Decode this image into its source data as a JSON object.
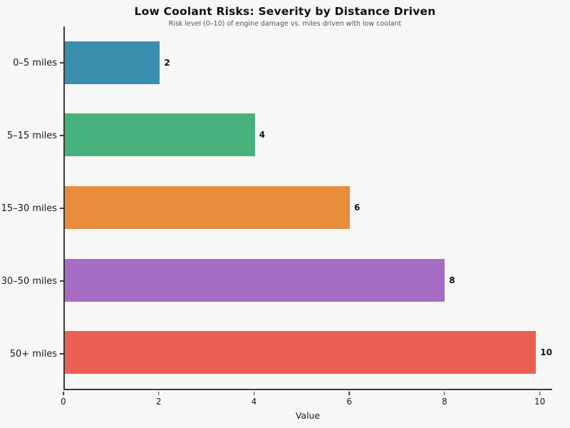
{
  "figure": {
    "title": "Low Coolant Risks: Severity by Distance Driven",
    "subtitle": "Risk level (0–10) of engine damage vs. miles driven with low coolant"
  },
  "chart_data": {
    "type": "bar",
    "orientation": "horizontal",
    "title": "Low Coolant Risks: Severity by Distance Driven",
    "subtitle": "Risk level (0–10) of engine damage vs. miles driven with low coolant",
    "categories": [
      "0–5 miles",
      "5–15 miles",
      "15–30 miles",
      "30–50 miles",
      "50+ miles"
    ],
    "values": [
      2,
      4,
      6,
      8,
      10
    ],
    "value_labels": [
      "2",
      "4",
      "6",
      "8",
      "10"
    ],
    "bar_colors": [
      "#3a8fae",
      "#48b27c",
      "#e88d3c",
      "#a76cc4",
      "#ea6153"
    ],
    "xlabel": "Value",
    "ylabel": "",
    "x_ticks": [
      0,
      2,
      4,
      6,
      8,
      10
    ],
    "xlim": [
      0,
      10.26
    ],
    "grid": false,
    "legend": "none",
    "background_color": "#f7f7f5",
    "spine_color": "#3a3a3a"
  }
}
